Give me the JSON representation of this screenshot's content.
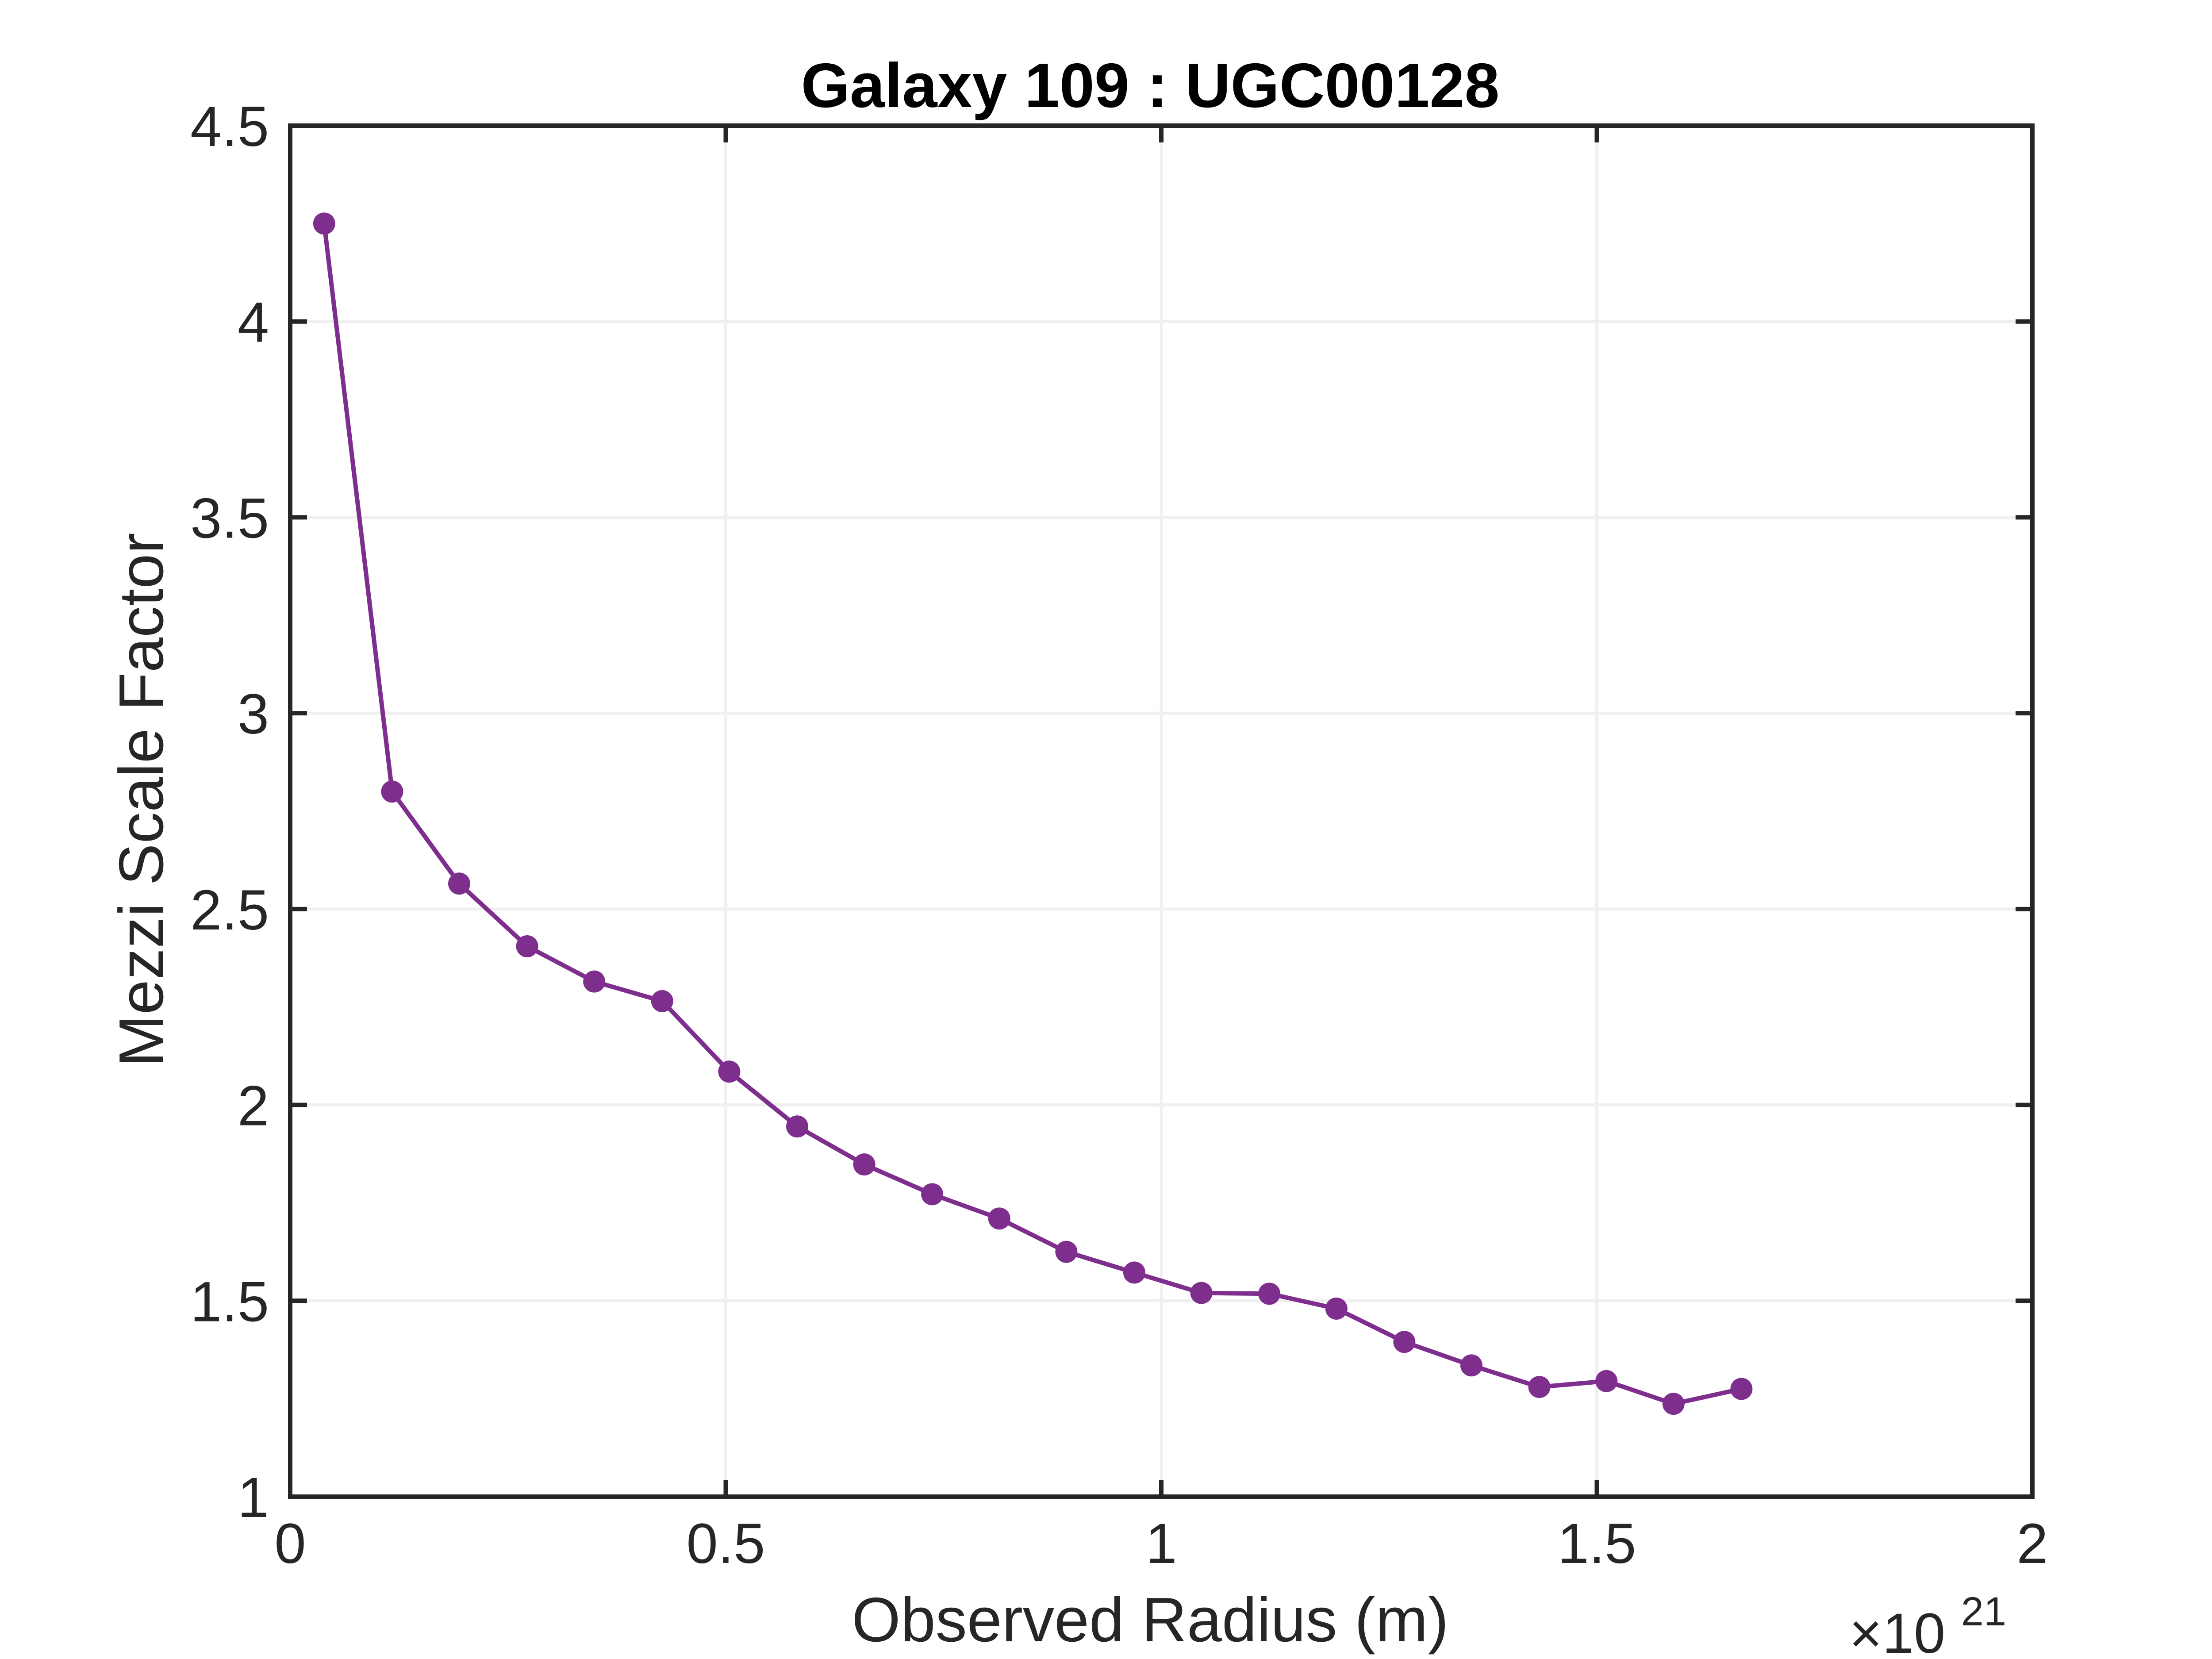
{
  "chart_data": {
    "type": "line",
    "title": "Galaxy 109 : UGC00128",
    "xlabel": "Observed Radius (m)",
    "ylabel": "Mezzi Scale Factor",
    "x_exponent_base": "×10",
    "x_exponent_power": "21",
    "x_scale_note": "x values shown in units of 10^21 m",
    "xlim": [
      0,
      2
    ],
    "ylim": [
      1,
      4.5
    ],
    "xticks": [
      0,
      0.5,
      1,
      1.5,
      2
    ],
    "xtick_labels": [
      "0",
      "0.5",
      "1",
      "1.5",
      "2"
    ],
    "yticks": [
      1,
      1.5,
      2,
      2.5,
      3,
      3.5,
      4,
      4.5
    ],
    "ytick_labels": [
      "1",
      "1.5",
      "2",
      "2.5",
      "3",
      "3.5",
      "4",
      "4.5"
    ],
    "grid": true,
    "series": [
      {
        "color": "#7e2f8e",
        "marker": "circle",
        "x": [
          0.039,
          0.117,
          0.194,
          0.272,
          0.349,
          0.427,
          0.504,
          0.582,
          0.659,
          0.737,
          0.814,
          0.891,
          0.969,
          1.046,
          1.124,
          1.201,
          1.279,
          1.356,
          1.434,
          1.511,
          1.588,
          1.666
        ],
        "y": [
          4.25,
          2.8,
          2.565,
          2.405,
          2.315,
          2.265,
          2.085,
          1.945,
          1.848,
          1.772,
          1.71,
          1.625,
          1.572,
          1.52,
          1.518,
          1.48,
          1.395,
          1.335,
          1.28,
          1.295,
          1.237,
          1.275
        ]
      }
    ],
    "colors": {
      "axes": "#262626",
      "grid": "#f0f0f0",
      "line": "#7e2f8e"
    }
  }
}
